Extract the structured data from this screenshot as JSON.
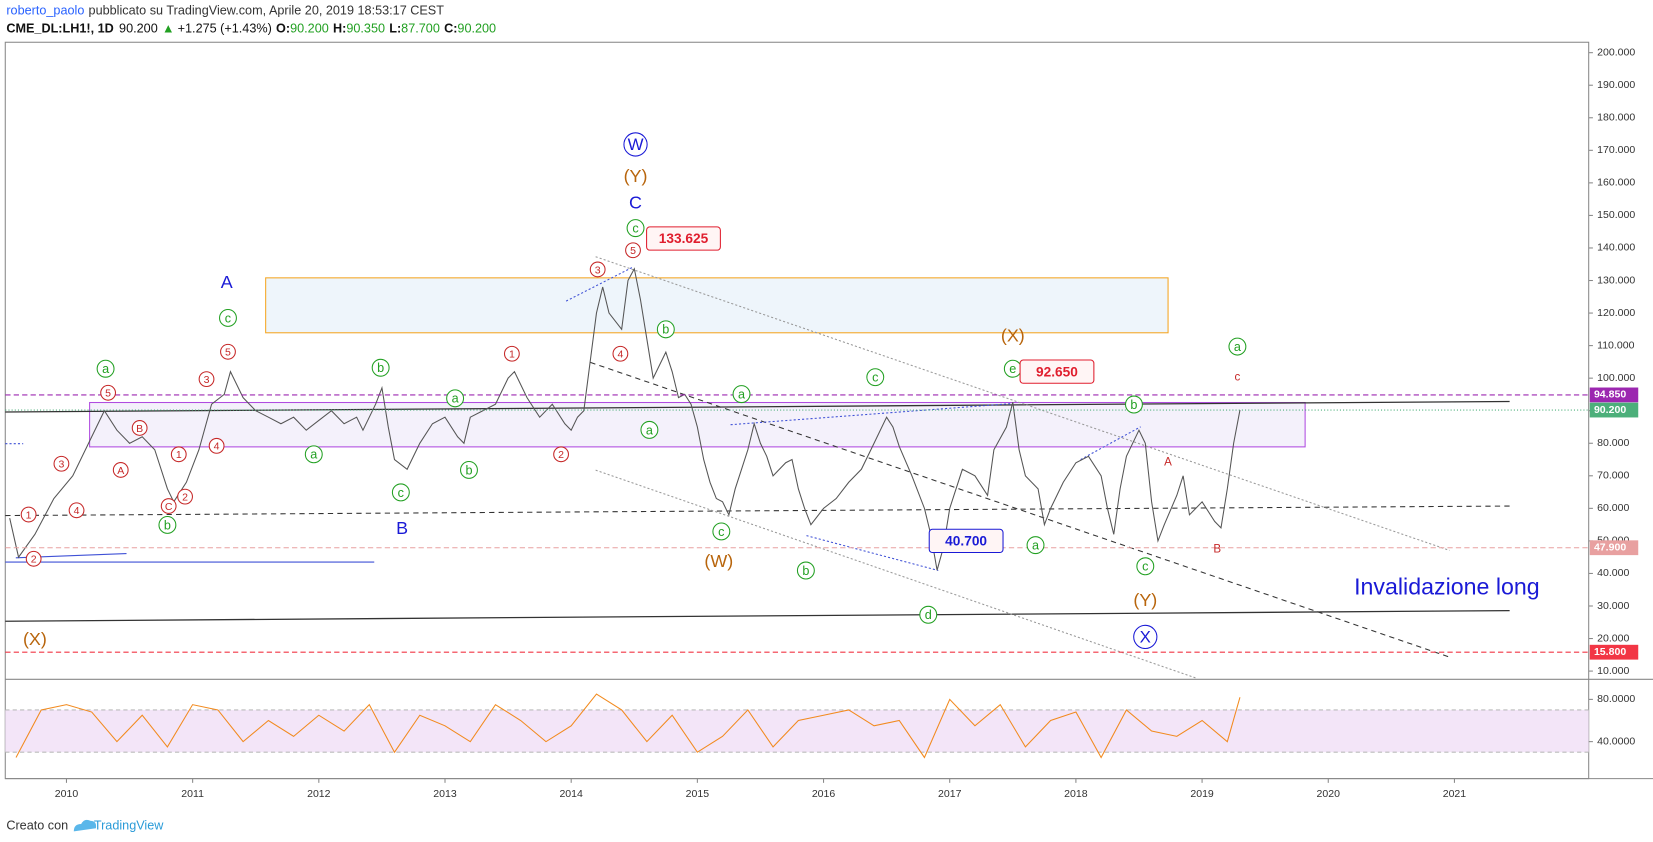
{
  "header": {
    "author": "roberto_paolo",
    "published": "pubblicato su TradingView.com, Aprile 20, 2019 18:53:17 CEST",
    "symbol": "CME_DL:LH1!, 1D",
    "last": "90.200",
    "arrow": "▲",
    "change": "+1.275 (+1.43%)",
    "ohlc": [
      {
        "label": "O:",
        "value": "90.200"
      },
      {
        "label": "H:",
        "value": "90.350"
      },
      {
        "label": "L:",
        "value": "87.700"
      },
      {
        "label": "C:",
        "value": "90.200"
      }
    ]
  },
  "footer": {
    "text": "Creato con",
    "brand": "TradingView"
  },
  "chart_data": [
    {
      "type": "line",
      "color": "#555555",
      "xlim": [
        2009.515,
        2022.064
      ],
      "ylim": [
        7.8,
        203.2
      ],
      "yticks": [
        {
          "value": 10,
          "label": "10.000"
        },
        {
          "value": 20,
          "label": "20.000"
        },
        {
          "value": 30,
          "label": "30.000"
        },
        {
          "value": 40,
          "label": "40.000"
        },
        {
          "value": 50,
          "label": "50.000"
        },
        {
          "value": 60,
          "label": "60.000"
        },
        {
          "value": 70,
          "label": "70.000"
        },
        {
          "value": 80,
          "label": "80.000"
        },
        {
          "value": 90,
          "label": "90.000"
        },
        {
          "value": 100,
          "label": "100.000"
        },
        {
          "value": 110,
          "label": "110.000"
        },
        {
          "value": 120,
          "label": "120.000"
        },
        {
          "value": 130,
          "label": "130.000"
        },
        {
          "value": 140,
          "label": "140.000"
        },
        {
          "value": 150,
          "label": "150.000"
        },
        {
          "value": 160,
          "label": "160.000"
        },
        {
          "value": 170,
          "label": "170.000"
        },
        {
          "value": 180,
          "label": "180.000"
        },
        {
          "value": 190,
          "label": "190.000"
        },
        {
          "value": 200,
          "label": "200.000"
        }
      ],
      "x": [
        2009.55,
        2009.62,
        2009.75,
        2009.9,
        2010.05,
        2010.2,
        2010.3,
        2010.4,
        2010.5,
        2010.6,
        2010.7,
        2010.8,
        2010.85,
        2010.95,
        2011.05,
        2011.15,
        2011.25,
        2011.3,
        2011.4,
        2011.5,
        2011.6,
        2011.7,
        2011.8,
        2011.9,
        2012.0,
        2012.1,
        2012.2,
        2012.3,
        2012.35,
        2012.45,
        2012.5,
        2012.55,
        2012.6,
        2012.7,
        2012.8,
        2012.9,
        2013.0,
        2013.1,
        2013.15,
        2013.2,
        2013.3,
        2013.4,
        2013.5,
        2013.55,
        2013.65,
        2013.75,
        2013.85,
        2013.95,
        2014.0,
        2014.05,
        2014.1,
        2014.15,
        2014.2,
        2014.25,
        2014.3,
        2014.4,
        2014.45,
        2014.5,
        2014.55,
        2014.6,
        2014.65,
        2014.7,
        2014.75,
        2014.8,
        2014.85,
        2014.9,
        2014.95,
        2015.0,
        2015.05,
        2015.1,
        2015.15,
        2015.2,
        2015.25,
        2015.3,
        2015.35,
        2015.4,
        2015.45,
        2015.5,
        2015.55,
        2015.6,
        2015.7,
        2015.75,
        2015.8,
        2015.85,
        2015.9,
        2016.0,
        2016.1,
        2016.2,
        2016.3,
        2016.4,
        2016.5,
        2016.55,
        2016.6,
        2016.7,
        2016.8,
        2016.85,
        2016.9,
        2016.95,
        2017.0,
        2017.05,
        2017.1,
        2017.2,
        2017.3,
        2017.35,
        2017.45,
        2017.5,
        2017.55,
        2017.6,
        2017.7,
        2017.75,
        2017.8,
        2017.9,
        2018.0,
        2018.1,
        2018.2,
        2018.25,
        2018.3,
        2018.35,
        2018.4,
        2018.5,
        2018.55,
        2018.6,
        2018.65,
        2018.7,
        2018.8,
        2018.85,
        2018.9,
        2018.95,
        2019.0,
        2019.1,
        2019.15,
        2019.2,
        2019.25,
        2019.3
      ],
      "values": [
        57,
        45,
        52,
        63,
        70,
        82,
        90,
        84,
        80,
        82,
        78,
        66,
        62,
        68,
        78,
        92,
        95,
        102,
        94,
        90,
        88,
        86,
        88,
        84,
        87,
        90,
        86,
        88,
        84,
        92,
        97,
        85,
        75,
        72,
        80,
        86,
        88,
        82,
        80,
        88,
        90,
        92,
        100,
        102,
        94,
        88,
        92,
        86,
        84,
        88,
        90,
        105,
        120,
        128,
        120,
        115,
        130,
        133.6,
        124,
        112,
        100,
        104,
        108,
        102,
        94,
        95,
        92,
        85,
        75,
        68,
        63,
        62,
        58,
        66,
        72,
        78,
        86,
        80,
        76,
        70,
        74,
        75,
        66,
        60,
        55,
        60,
        63,
        68,
        72,
        80,
        88,
        85,
        79,
        70,
        60,
        52,
        41,
        48,
        60,
        66,
        72,
        70,
        64,
        78,
        85,
        92.6,
        78,
        70,
        66,
        55,
        60,
        68,
        74,
        76,
        70,
        60,
        52,
        66,
        76,
        84,
        80,
        62,
        50,
        55,
        64,
        70,
        58,
        60,
        62,
        56,
        54,
        66,
        80,
        90.2
      ],
      "price_levels": [
        {
          "value": 94.85,
          "label": "94.850",
          "color": "#9c27b0"
        },
        {
          "value": 90.2,
          "label": "90.200",
          "color": "#4caf7a"
        },
        {
          "value": 47.9,
          "label": "47.900",
          "color": "#e8a0a0"
        },
        {
          "value": 15.8,
          "label": "15.800",
          "color": "#f23645"
        }
      ],
      "callouts": [
        {
          "text": "133.625",
          "x": 2014.89,
          "y": 142.9,
          "color": "#e01e2e"
        },
        {
          "text": "92.650",
          "x": 2017.85,
          "y": 102.0,
          "color": "#e01e2e"
        },
        {
          "text": "40.700",
          "x": 2017.13,
          "y": 50.0,
          "color": "#1a1ad6"
        }
      ],
      "annotations": [
        {
          "text": "W",
          "x": 2014.51,
          "y": 171.8,
          "color": "#1a1ad6",
          "style": "big"
        },
        {
          "text": "(Y)",
          "x": 2014.51,
          "y": 162.0,
          "color": "#b8650c",
          "style": "plain"
        },
        {
          "text": "C",
          "x": 2014.51,
          "y": 153.9,
          "color": "#1a1ad6",
          "style": "plain"
        },
        {
          "text": "c",
          "x": 2014.51,
          "y": 146.1,
          "color": "#22a022",
          "style": "circle"
        },
        {
          "text": "5",
          "x": 2014.49,
          "y": 139.3,
          "color": "#c62828",
          "style": "small"
        },
        {
          "text": "3",
          "x": 2014.21,
          "y": 133.4,
          "color": "#c62828",
          "style": "small"
        },
        {
          "text": "4",
          "x": 2014.39,
          "y": 107.5,
          "color": "#c62828",
          "style": "small"
        },
        {
          "text": "b",
          "x": 2014.75,
          "y": 115.0,
          "color": "#22a022",
          "style": "circle"
        },
        {
          "text": "a",
          "x": 2014.62,
          "y": 84.1,
          "color": "#22a022",
          "style": "circle"
        },
        {
          "text": "A",
          "x": 2011.27,
          "y": 129.5,
          "color": "#1a1ad6",
          "style": "plain"
        },
        {
          "text": "c",
          "x": 2011.28,
          "y": 118.5,
          "color": "#22a022",
          "style": "circle"
        },
        {
          "text": "5",
          "x": 2011.28,
          "y": 108.1,
          "color": "#c62828",
          "style": "small"
        },
        {
          "text": "3",
          "x": 2011.11,
          "y": 99.7,
          "color": "#c62828",
          "style": "small"
        },
        {
          "text": "4",
          "x": 2011.19,
          "y": 79.2,
          "color": "#c62828",
          "style": "small"
        },
        {
          "text": "1",
          "x": 2010.89,
          "y": 76.6,
          "color": "#c62828",
          "style": "small"
        },
        {
          "text": "2",
          "x": 2010.94,
          "y": 63.6,
          "color": "#c62828",
          "style": "small"
        },
        {
          "text": "C",
          "x": 2010.81,
          "y": 60.7,
          "color": "#c62828",
          "style": "small"
        },
        {
          "text": "b",
          "x": 2010.8,
          "y": 54.9,
          "color": "#22a022",
          "style": "circle"
        },
        {
          "text": "B",
          "x": 2010.58,
          "y": 84.7,
          "color": "#c62828",
          "style": "small"
        },
        {
          "text": "A",
          "x": 2010.43,
          "y": 71.8,
          "color": "#c62828",
          "style": "small"
        },
        {
          "text": "4",
          "x": 2010.08,
          "y": 59.4,
          "color": "#c62828",
          "style": "small"
        },
        {
          "text": "3",
          "x": 2009.96,
          "y": 73.7,
          "color": "#c62828",
          "style": "small"
        },
        {
          "text": "1",
          "x": 2009.7,
          "y": 58.1,
          "color": "#c62828",
          "style": "small"
        },
        {
          "text": "2",
          "x": 2009.74,
          "y": 44.5,
          "color": "#c62828",
          "style": "small"
        },
        {
          "text": "5",
          "x": 2010.33,
          "y": 95.5,
          "color": "#c62828",
          "style": "small"
        },
        {
          "text": "a",
          "x": 2010.31,
          "y": 102.9,
          "color": "#22a022",
          "style": "circle"
        },
        {
          "text": "(X)",
          "x": 2009.75,
          "y": 19.8,
          "color": "#b8650c",
          "style": "plain"
        },
        {
          "text": "b",
          "x": 2012.49,
          "y": 103.2,
          "color": "#22a022",
          "style": "circle"
        },
        {
          "text": "a",
          "x": 2011.96,
          "y": 76.6,
          "color": "#22a022",
          "style": "circle"
        },
        {
          "text": "c",
          "x": 2012.65,
          "y": 64.9,
          "color": "#22a022",
          "style": "circle"
        },
        {
          "text": "B",
          "x": 2012.66,
          "y": 53.9,
          "color": "#1a1ad6",
          "style": "plain"
        },
        {
          "text": "a",
          "x": 2013.08,
          "y": 93.8,
          "color": "#22a022",
          "style": "circle"
        },
        {
          "text": "b",
          "x": 2013.19,
          "y": 71.8,
          "color": "#22a022",
          "style": "circle"
        },
        {
          "text": "1",
          "x": 2013.53,
          "y": 107.5,
          "color": "#c62828",
          "style": "small"
        },
        {
          "text": "2",
          "x": 2013.92,
          "y": 76.6,
          "color": "#c62828",
          "style": "small"
        },
        {
          "text": "a",
          "x": 2015.35,
          "y": 95.1,
          "color": "#22a022",
          "style": "circle"
        },
        {
          "text": "c",
          "x": 2015.19,
          "y": 52.9,
          "color": "#22a022",
          "style": "circle"
        },
        {
          "text": "(W)",
          "x": 2015.17,
          "y": 43.8,
          "color": "#b8650c",
          "style": "plain"
        },
        {
          "text": "b",
          "x": 2015.86,
          "y": 40.9,
          "color": "#22a022",
          "style": "circle"
        },
        {
          "text": "c",
          "x": 2016.41,
          "y": 100.3,
          "color": "#22a022",
          "style": "circle"
        },
        {
          "text": "d",
          "x": 2016.83,
          "y": 27.3,
          "color": "#22a022",
          "style": "circle"
        },
        {
          "text": "(X)",
          "x": 2017.5,
          "y": 113.0,
          "color": "#b8650c",
          "style": "plain"
        },
        {
          "text": "e",
          "x": 2017.5,
          "y": 102.9,
          "color": "#22a022",
          "style": "circle"
        },
        {
          "text": "a",
          "x": 2017.68,
          "y": 48.7,
          "color": "#22a022",
          "style": "circle"
        },
        {
          "text": "b",
          "x": 2018.46,
          "y": 91.9,
          "color": "#22a022",
          "style": "circle"
        },
        {
          "text": "A",
          "x": 2018.73,
          "y": 74.4,
          "color": "#c62828",
          "style": "tiny"
        },
        {
          "text": "c",
          "x": 2018.55,
          "y": 42.2,
          "color": "#22a022",
          "style": "circle"
        },
        {
          "text": "(Y)",
          "x": 2018.55,
          "y": 31.8,
          "color": "#b8650c",
          "style": "plain"
        },
        {
          "text": "X",
          "x": 2018.55,
          "y": 20.5,
          "color": "#1a1ad6",
          "style": "big"
        },
        {
          "text": "B",
          "x": 2019.12,
          "y": 47.7,
          "color": "#c62828",
          "style": "tiny"
        },
        {
          "text": "a",
          "x": 2019.28,
          "y": 109.7,
          "color": "#22a022",
          "style": "circle"
        },
        {
          "text": "c",
          "x": 2019.28,
          "y": 100.6,
          "color": "#c62828",
          "style": "tiny"
        },
        {
          "text": "Invalidazione long",
          "x": 2020.94,
          "y": 35.7,
          "color": "#1a1ad6",
          "style": "note"
        }
      ]
    },
    {
      "type": "line",
      "color": "#f28a1e",
      "band": [
        30,
        70
      ],
      "xlim": [
        2009.515,
        2022.064
      ],
      "ylim": [
        5,
        97
      ],
      "xticks": [
        2010,
        2011,
        2012,
        2013,
        2014,
        2015,
        2016,
        2017,
        2018,
        2019,
        2020,
        2021
      ],
      "yticks": [
        {
          "value": 40,
          "label": "40.0000"
        },
        {
          "value": 80,
          "label": "80.0000"
        }
      ],
      "x": [
        2009.6,
        2009.8,
        2010.0,
        2010.2,
        2010.4,
        2010.6,
        2010.8,
        2011.0,
        2011.2,
        2011.4,
        2011.6,
        2011.8,
        2012.0,
        2012.2,
        2012.4,
        2012.6,
        2012.8,
        2013.0,
        2013.2,
        2013.4,
        2013.6,
        2013.8,
        2014.0,
        2014.2,
        2014.4,
        2014.6,
        2014.8,
        2015.0,
        2015.2,
        2015.4,
        2015.6,
        2015.8,
        2016.0,
        2016.2,
        2016.4,
        2016.6,
        2016.8,
        2017.0,
        2017.2,
        2017.4,
        2017.6,
        2017.8,
        2018.0,
        2018.2,
        2018.4,
        2018.6,
        2018.8,
        2019.0,
        2019.2,
        2019.3
      ],
      "values": [
        25,
        70,
        75,
        68,
        40,
        65,
        35,
        75,
        70,
        40,
        60,
        45,
        65,
        50,
        75,
        30,
        65,
        55,
        40,
        75,
        60,
        40,
        55,
        85,
        70,
        40,
        65,
        30,
        45,
        70,
        35,
        60,
        65,
        70,
        55,
        60,
        25,
        80,
        55,
        75,
        35,
        60,
        68,
        25,
        70,
        50,
        45,
        60,
        40,
        82
      ]
    }
  ]
}
